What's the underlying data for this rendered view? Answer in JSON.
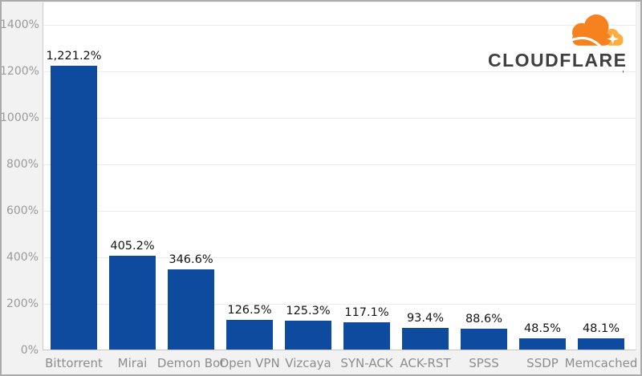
{
  "logo": {
    "wordmark": "CLOUDFLARE",
    "mark": "'",
    "cloud_main_color": "#f6821f",
    "cloud_light_color": "#fbad41",
    "wordmark_color": "#404041"
  },
  "colors": {
    "bar": "#0e4a9e",
    "value_label": "#141414",
    "axis_label": "#9a9a9a",
    "x_label": "#8d8d8d",
    "gridline": "#ececec",
    "plot_background": "#ffffff",
    "outer_background": "#f2f2f2"
  },
  "chart_data": {
    "type": "bar",
    "categories": [
      "Bittorrent",
      "Mirai",
      "Demon Bot",
      "Open VPN",
      "Vizcaya",
      "SYN-ACK",
      "ACK-RST",
      "SPSS",
      "SSDP",
      "Memcached"
    ],
    "values": [
      1221.2,
      405.2,
      346.6,
      126.5,
      125.3,
      117.1,
      93.4,
      88.6,
      48.5,
      48.1
    ],
    "value_labels": [
      "1,221.2%",
      "405.2%",
      "346.6%",
      "126.5%",
      "125.3%",
      "117.1%",
      "93.4%",
      "88.6%",
      "48.5%",
      "48.1%"
    ],
    "title": "",
    "xlabel": "",
    "ylabel": "",
    "ylim": [
      0,
      1400
    ],
    "y_ticks": [
      0,
      200,
      400,
      600,
      800,
      1000,
      1200,
      1400
    ],
    "y_tick_labels": [
      "0%",
      "200%",
      "400%",
      "600%",
      "800%",
      "1000%",
      "1200%",
      "1400%"
    ],
    "grid": "horizontal",
    "legend": "none",
    "bar_color": "#0e4a9e"
  }
}
